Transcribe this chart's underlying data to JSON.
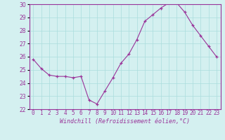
{
  "x": [
    0,
    1,
    2,
    3,
    4,
    5,
    6,
    7,
    8,
    9,
    10,
    11,
    12,
    13,
    14,
    15,
    16,
    17,
    18,
    19,
    20,
    21,
    22,
    23
  ],
  "y": [
    25.8,
    25.1,
    24.6,
    24.5,
    24.5,
    24.4,
    24.5,
    22.7,
    22.4,
    23.4,
    24.4,
    25.5,
    26.2,
    27.3,
    28.7,
    29.2,
    29.7,
    30.1,
    30.1,
    29.4,
    28.4,
    27.6,
    26.8,
    26.0
  ],
  "ylim": [
    22,
    30
  ],
  "yticks": [
    22,
    23,
    24,
    25,
    26,
    27,
    28,
    29,
    30
  ],
  "xlabel": "Windchill (Refroidissement éolien,°C)",
  "line_color": "#993399",
  "marker_color": "#993399",
  "bg_color": "#d4f0f0",
  "grid_color": "#aadddd",
  "spine_color": "#993399",
  "tick_fontsize": 5.5,
  "xlabel_fontsize": 6.0,
  "figsize": [
    3.2,
    2.0
  ],
  "dpi": 100
}
